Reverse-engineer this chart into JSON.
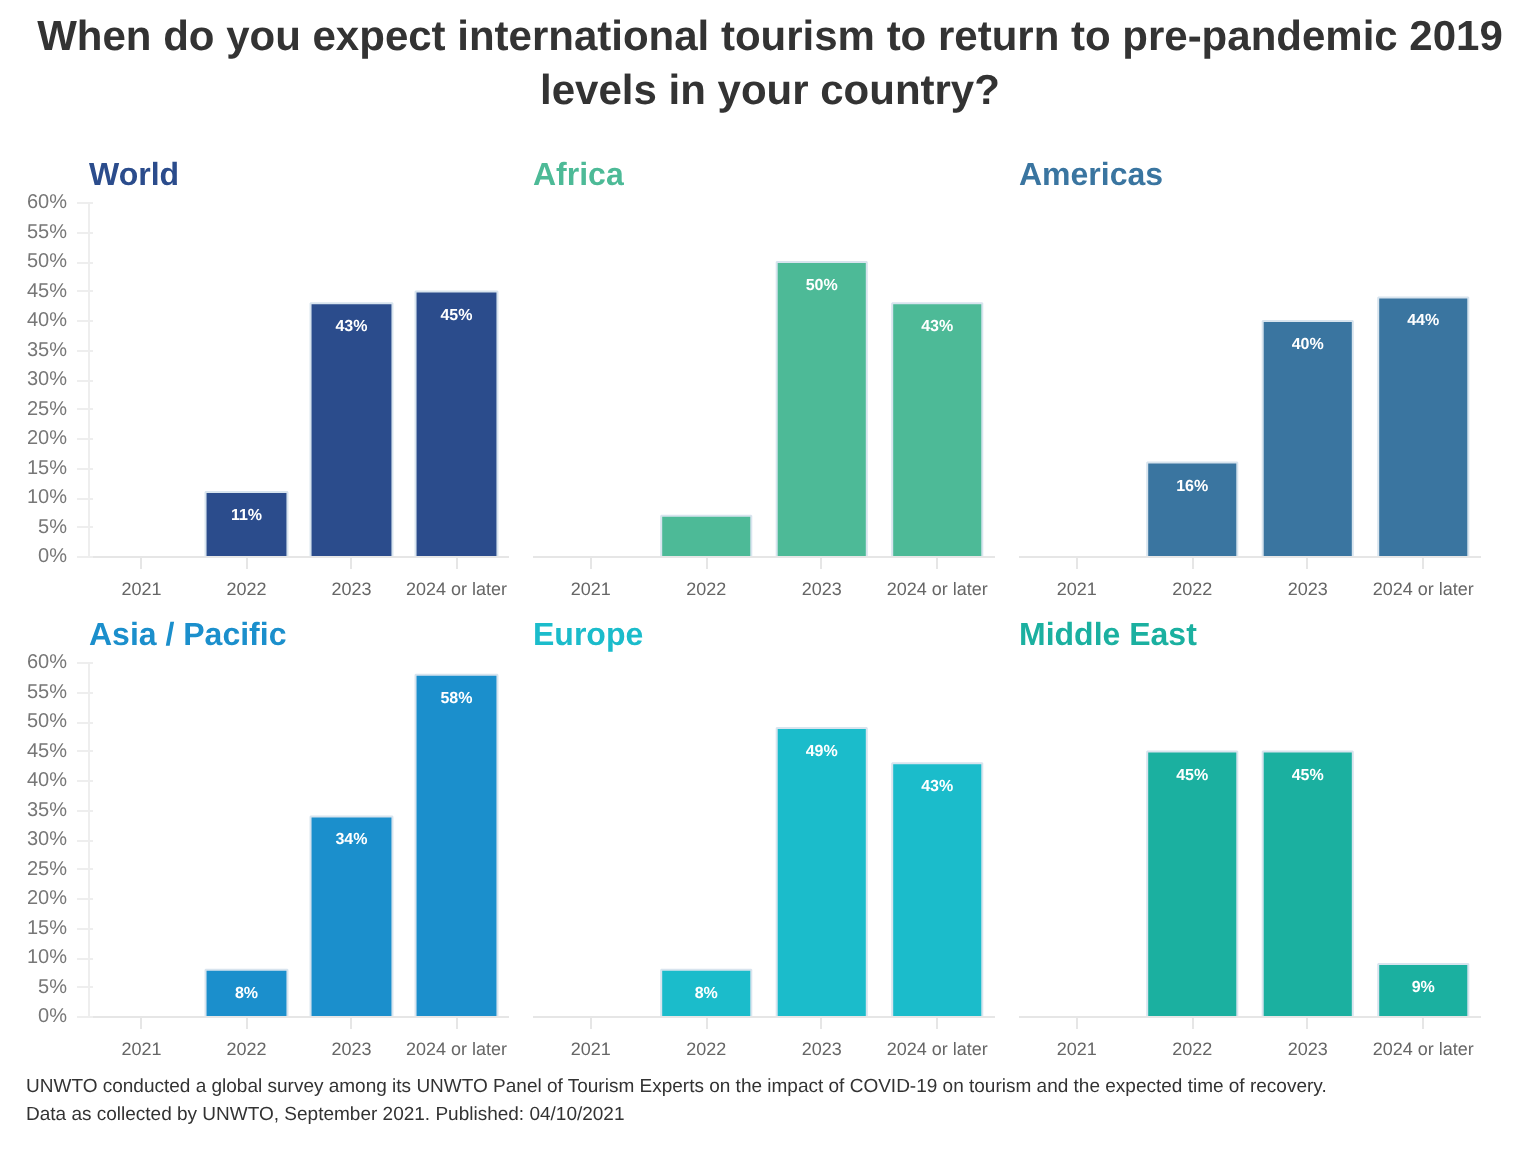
{
  "chart_data": [
    {
      "type": "other",
      "title": "When do you expect international tourism to return to pre-pandemic 2019 levels in your country?"
    },
    {
      "type": "bar",
      "title": "World",
      "categories": [
        "2021",
        "2022",
        "2023",
        "2024 or later"
      ],
      "values": [
        null,
        11,
        43,
        45
      ],
      "value_labels": [
        null,
        "11%",
        "43%",
        "45%"
      ],
      "color": "#2b4c8c",
      "ylim": [
        0,
        60
      ],
      "yticks": [
        {
          "value": 0,
          "label": "0%"
        },
        {
          "value": 5,
          "label": "5%"
        },
        {
          "value": 10,
          "label": "10%"
        },
        {
          "value": 15,
          "label": "15%"
        },
        {
          "value": 20,
          "label": "20%"
        },
        {
          "value": 25,
          "label": "25%"
        },
        {
          "value": 30,
          "label": "30%"
        },
        {
          "value": 35,
          "label": "35%"
        },
        {
          "value": 40,
          "label": "40%"
        },
        {
          "value": 45,
          "label": "45%"
        },
        {
          "value": 50,
          "label": "50%"
        },
        {
          "value": 55,
          "label": "55%"
        },
        {
          "value": 60,
          "label": "60%"
        }
      ],
      "grid": false
    },
    {
      "type": "bar",
      "title": "Africa",
      "categories": [
        "2021",
        "2022",
        "2023",
        "2024 or later"
      ],
      "values": [
        null,
        7,
        50,
        43
      ],
      "value_labels": [
        null,
        null,
        "50%",
        "43%"
      ],
      "color": "#4dba97",
      "ylim": [
        0,
        60
      ],
      "tick_labels": "x",
      "grid": false
    },
    {
      "type": "bar",
      "title": "Americas",
      "categories": [
        "2021",
        "2022",
        "2023",
        "2024 or later"
      ],
      "values": [
        null,
        16,
        40,
        44
      ],
      "value_labels": [
        null,
        "16%",
        "40%",
        "44%"
      ],
      "color": "#3a75a0",
      "ylim": [
        0,
        60
      ],
      "tick_labels": "x",
      "grid": false
    },
    {
      "type": "bar",
      "title": "Asia / Pacific",
      "categories": [
        "2021",
        "2022",
        "2023",
        "2024 or later"
      ],
      "values": [
        null,
        8,
        34,
        58
      ],
      "value_labels": [
        null,
        "8%",
        "34%",
        "58%"
      ],
      "color": "#1b8fcc",
      "ylim": [
        0,
        60
      ],
      "yticks": [
        {
          "value": 0,
          "label": "0%"
        },
        {
          "value": 5,
          "label": "5%"
        },
        {
          "value": 10,
          "label": "10%"
        },
        {
          "value": 15,
          "label": "15%"
        },
        {
          "value": 20,
          "label": "20%"
        },
        {
          "value": 25,
          "label": "25%"
        },
        {
          "value": 30,
          "label": "30%"
        },
        {
          "value": 35,
          "label": "35%"
        },
        {
          "value": 40,
          "label": "40%"
        },
        {
          "value": 45,
          "label": "45%"
        },
        {
          "value": 50,
          "label": "50%"
        },
        {
          "value": 55,
          "label": "55%"
        },
        {
          "value": 60,
          "label": "60%"
        }
      ],
      "grid": false
    },
    {
      "type": "bar",
      "title": "Europe",
      "categories": [
        "2021",
        "2022",
        "2023",
        "2024 or later"
      ],
      "values": [
        null,
        8,
        49,
        43
      ],
      "value_labels": [
        null,
        "8%",
        "49%",
        "43%"
      ],
      "color": "#1bbccb",
      "ylim": [
        0,
        60
      ],
      "tick_labels": "x",
      "grid": false
    },
    {
      "type": "bar",
      "title": "Middle East",
      "categories": [
        "2021",
        "2022",
        "2023",
        "2024 or later"
      ],
      "values": [
        null,
        45,
        45,
        9
      ],
      "value_labels": [
        null,
        "45%",
        "45%",
        "9%"
      ],
      "color": "#1bb0a0",
      "ylim": [
        0,
        60
      ],
      "tick_labels": "x",
      "grid": false
    },
    {
      "type": "other",
      "annotations": [
        "UNWTO conducted a global survey among its UNWTO Panel of Tourism Experts on the impact of COVID-19 on tourism and the expected time of recovery.",
        "Data as collected by UNWTO, September 2021. Published: 04/10/2021"
      ]
    }
  ]
}
